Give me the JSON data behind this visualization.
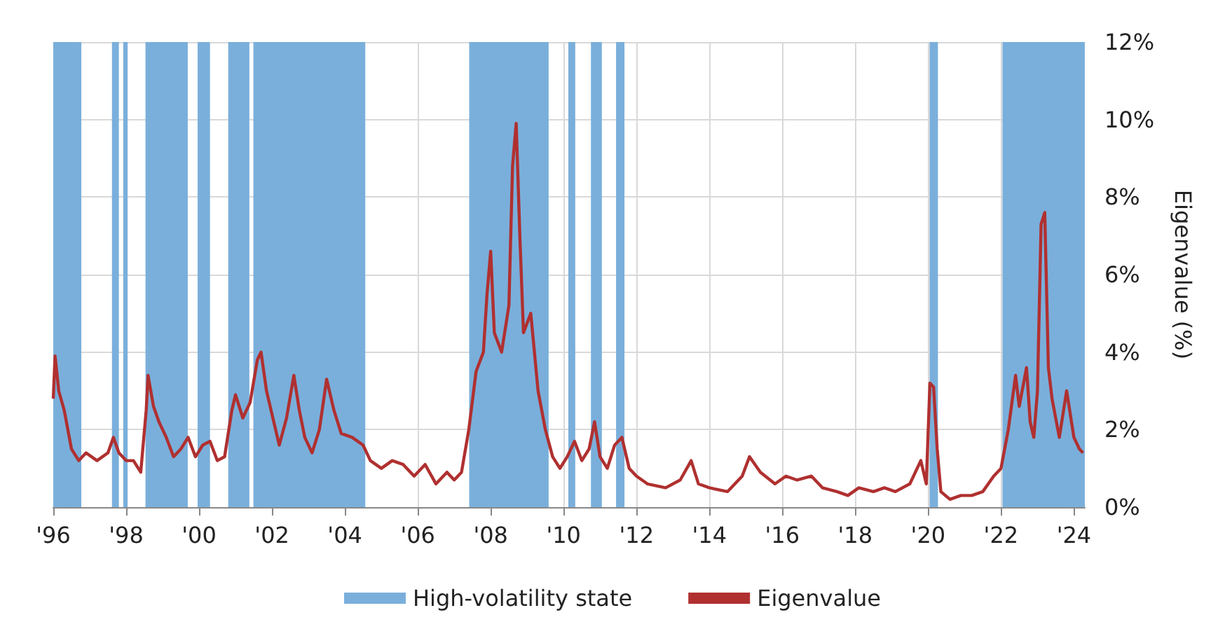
{
  "chart_data": {
    "type": "line",
    "ylabel": "Eigenvalue (%)",
    "xlim": [
      1996,
      2024.3
    ],
    "xticks": [
      {
        "value": 1996,
        "label": "'96"
      },
      {
        "value": 1998,
        "label": "'98"
      },
      {
        "value": 2000,
        "label": "'00"
      },
      {
        "value": 2002,
        "label": "'02"
      },
      {
        "value": 2004,
        "label": "'04"
      },
      {
        "value": 2006,
        "label": "'06"
      },
      {
        "value": 2008,
        "label": "'08"
      },
      {
        "value": 2010,
        "label": "'10"
      },
      {
        "value": 2012,
        "label": "'12"
      },
      {
        "value": 2014,
        "label": "'14"
      },
      {
        "value": 2016,
        "label": "'16"
      },
      {
        "value": 2018,
        "label": "'18"
      },
      {
        "value": 2020,
        "label": "'20"
      },
      {
        "value": 2022,
        "label": "'22"
      },
      {
        "value": 2024,
        "label": "'24"
      }
    ],
    "ylim": [
      0,
      12
    ],
    "yticks": [
      {
        "value": 0,
        "label": "0%"
      },
      {
        "value": 2,
        "label": "2%"
      },
      {
        "value": 4,
        "label": "4%"
      },
      {
        "value": 6,
        "label": "6%"
      },
      {
        "value": 8,
        "label": "8%"
      },
      {
        "value": 10,
        "label": "10%"
      },
      {
        "value": 12,
        "label": "12%"
      }
    ],
    "grid": true,
    "legend": "bottom",
    "marker": "none",
    "line_style": "solid",
    "series": [
      {
        "name": "Eigenvalue",
        "color": "#b03030",
        "x": [
          1996.0,
          1996.05,
          1996.15,
          1996.3,
          1996.5,
          1996.7,
          1996.9,
          1997.2,
          1997.5,
          1997.65,
          1997.8,
          1998.0,
          1998.2,
          1998.4,
          1998.55,
          1998.6,
          1998.75,
          1998.9,
          1999.1,
          1999.3,
          1999.5,
          1999.7,
          1999.9,
          2000.1,
          2000.3,
          2000.5,
          2000.7,
          2000.9,
          2001.0,
          2001.2,
          2001.4,
          2001.6,
          2001.7,
          2001.85,
          2002.0,
          2002.2,
          2002.4,
          2002.6,
          2002.75,
          2002.9,
          2003.1,
          2003.3,
          2003.5,
          2003.7,
          2003.9,
          2004.2,
          2004.5,
          2004.7,
          2005.0,
          2005.3,
          2005.6,
          2005.9,
          2006.2,
          2006.5,
          2006.8,
          2007.0,
          2007.2,
          2007.4,
          2007.6,
          2007.8,
          2007.9,
          2008.0,
          2008.1,
          2008.3,
          2008.5,
          2008.6,
          2008.7,
          2008.8,
          2008.9,
          2009.1,
          2009.3,
          2009.5,
          2009.7,
          2009.9,
          2010.1,
          2010.3,
          2010.5,
          2010.7,
          2010.85,
          2011.0,
          2011.2,
          2011.4,
          2011.6,
          2011.8,
          2012.0,
          2012.3,
          2012.8,
          2013.2,
          2013.5,
          2013.7,
          2014.0,
          2014.5,
          2014.9,
          2015.1,
          2015.4,
          2015.8,
          2016.1,
          2016.4,
          2016.8,
          2017.1,
          2017.5,
          2017.8,
          2018.1,
          2018.5,
          2018.8,
          2019.1,
          2019.5,
          2019.8,
          2019.95,
          2020.05,
          2020.15,
          2020.25,
          2020.35,
          2020.6,
          2020.9,
          2021.2,
          2021.5,
          2021.8,
          2022.0,
          2022.2,
          2022.4,
          2022.5,
          2022.7,
          2022.8,
          2022.9,
          2023.0,
          2023.1,
          2023.2,
          2023.3,
          2023.4,
          2023.6,
          2023.8,
          2023.9,
          2024.0,
          2024.15,
          2024.25
        ],
        "values": [
          2.8,
          3.9,
          3.0,
          2.5,
          1.5,
          1.2,
          1.4,
          1.2,
          1.4,
          1.8,
          1.4,
          1.2,
          1.2,
          0.9,
          2.5,
          3.4,
          2.6,
          2.2,
          1.8,
          1.3,
          1.5,
          1.8,
          1.3,
          1.6,
          1.7,
          1.2,
          1.3,
          2.5,
          2.9,
          2.3,
          2.7,
          3.8,
          4.0,
          3.0,
          2.4,
          1.6,
          2.3,
          3.4,
          2.5,
          1.8,
          1.4,
          2.0,
          3.3,
          2.5,
          1.9,
          1.8,
          1.6,
          1.2,
          1.0,
          1.2,
          1.1,
          0.8,
          1.1,
          0.6,
          0.9,
          0.7,
          0.9,
          2.0,
          3.5,
          4.0,
          5.5,
          6.6,
          4.5,
          4.0,
          5.2,
          8.8,
          9.9,
          7.0,
          4.5,
          5.0,
          3.0,
          2.0,
          1.3,
          1.0,
          1.3,
          1.7,
          1.2,
          1.5,
          2.2,
          1.3,
          1.0,
          1.6,
          1.8,
          1.0,
          0.8,
          0.6,
          0.5,
          0.7,
          1.2,
          0.6,
          0.5,
          0.4,
          0.8,
          1.3,
          0.9,
          0.6,
          0.8,
          0.7,
          0.8,
          0.5,
          0.4,
          0.3,
          0.5,
          0.4,
          0.5,
          0.4,
          0.6,
          1.2,
          0.6,
          3.2,
          3.1,
          1.5,
          0.4,
          0.2,
          0.3,
          0.3,
          0.4,
          0.8,
          1.0,
          2.0,
          3.4,
          2.6,
          3.6,
          2.2,
          1.8,
          3.0,
          7.3,
          7.6,
          3.6,
          2.8,
          1.8,
          3.0,
          2.4,
          1.8,
          1.5,
          1.4
        ]
      }
    ],
    "bands": [
      {
        "axis": "x",
        "from": 1996.0,
        "to": 1996.77,
        "label": "High-volatility state",
        "color": "#7aafdb"
      },
      {
        "axis": "x",
        "from": 1997.61,
        "to": 1997.8,
        "color": "#7aafdb"
      },
      {
        "axis": "x",
        "from": 1997.92,
        "to": 1998.04,
        "color": "#7aafdb"
      },
      {
        "axis": "x",
        "from": 1998.53,
        "to": 1999.69,
        "color": "#7aafdb"
      },
      {
        "axis": "x",
        "from": 1999.96,
        "to": 2000.3,
        "color": "#7aafdb"
      },
      {
        "axis": "x",
        "from": 2000.8,
        "to": 2001.38,
        "color": "#7aafdb"
      },
      {
        "axis": "x",
        "from": 2001.49,
        "to": 2004.56,
        "color": "#7aafdb"
      },
      {
        "axis": "x",
        "from": 2007.41,
        "to": 2009.59,
        "color": "#7aafdb"
      },
      {
        "axis": "x",
        "from": 2010.13,
        "to": 2010.32,
        "color": "#7aafdb"
      },
      {
        "axis": "x",
        "from": 2010.75,
        "to": 2011.05,
        "color": "#7aafdb"
      },
      {
        "axis": "x",
        "from": 2011.44,
        "to": 2011.67,
        "color": "#7aafdb"
      },
      {
        "axis": "x",
        "from": 2020.04,
        "to": 2020.27,
        "color": "#7aafdb"
      },
      {
        "axis": "x",
        "from": 2022.04,
        "to": 2024.3,
        "color": "#7aafdb"
      }
    ]
  }
}
